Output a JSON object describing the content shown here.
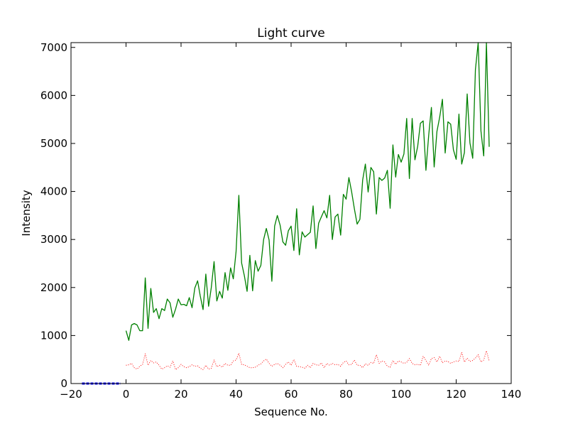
{
  "chart_data": {
    "type": "line",
    "title": "Light curve",
    "xlabel": "Sequence No.",
    "ylabel": "Intensity",
    "xlim": [
      -20,
      140
    ],
    "ylim": [
      0,
      7100
    ],
    "x_ticks": [
      -20,
      0,
      20,
      40,
      60,
      80,
      100,
      120,
      140
    ],
    "y_ticks": [
      0,
      1000,
      2000,
      3000,
      4000,
      5000,
      6000,
      7000
    ],
    "x_tick_labels": [
      "−20",
      "0",
      "20",
      "40",
      "60",
      "80",
      "100",
      "120",
      "140"
    ],
    "y_tick_labels": [
      "0",
      "1000",
      "2000",
      "3000",
      "4000",
      "5000",
      "6000",
      "7000"
    ],
    "grid": false,
    "legend": "none",
    "series": [
      {
        "style": "solid",
        "color": "#008000",
        "x_start": 0,
        "values": [
          1100,
          900,
          1220,
          1250,
          1220,
          1100,
          1100,
          2200,
          1150,
          1980,
          1480,
          1560,
          1350,
          1560,
          1520,
          1760,
          1680,
          1380,
          1550,
          1760,
          1640,
          1650,
          1620,
          1790,
          1580,
          1990,
          2140,
          1820,
          1540,
          2280,
          1610,
          2000,
          2540,
          1720,
          1920,
          1780,
          2310,
          1940,
          2410,
          2180,
          2750,
          3920,
          2510,
          2250,
          1920,
          2670,
          1930,
          2560,
          2340,
          2460,
          3000,
          3230,
          2990,
          2130,
          3280,
          3500,
          3300,
          2950,
          2880,
          3180,
          3280,
          2770,
          3640,
          2680,
          3160,
          3050,
          3100,
          3150,
          3700,
          2810,
          3340,
          3470,
          3600,
          3450,
          3920,
          3000,
          3470,
          3530,
          3090,
          3940,
          3840,
          4290,
          3990,
          3640,
          3320,
          3420,
          4240,
          4570,
          3990,
          4500,
          4410,
          3530,
          4290,
          4230,
          4280,
          4440,
          3650,
          4970,
          4300,
          4770,
          4610,
          4780,
          5520,
          4270,
          5520,
          4660,
          4940,
          5420,
          5470,
          4440,
          5170,
          5750,
          4510,
          5250,
          5550,
          5920,
          4800,
          5450,
          5400,
          4870,
          4670,
          5610,
          4570,
          4810,
          6030,
          5010,
          4690,
          6540,
          7100,
          5260,
          4740,
          7100,
          4930
        ]
      },
      {
        "style": "dotted",
        "color": "#ff0000",
        "x_start": 0,
        "values": [
          380,
          390,
          420,
          330,
          300,
          360,
          400,
          620,
          380,
          480,
          430,
          450,
          380,
          300,
          330,
          370,
          340,
          470,
          290,
          330,
          400,
          350,
          330,
          350,
          390,
          360,
          370,
          320,
          290,
          380,
          300,
          320,
          490,
          350,
          380,
          340,
          420,
          380,
          380,
          470,
          490,
          630,
          400,
          390,
          360,
          330,
          330,
          340,
          380,
          410,
          470,
          510,
          420,
          360,
          400,
          420,
          380,
          330,
          400,
          450,
          380,
          500,
          360,
          350,
          340,
          320,
          380,
          330,
          420,
          390,
          380,
          430,
          330,
          420,
          380,
          420,
          390,
          400,
          360,
          440,
          470,
          390,
          400,
          490,
          380,
          380,
          330,
          410,
          380,
          440,
          420,
          600,
          420,
          470,
          450,
          360,
          340,
          480,
          400,
          470,
          450,
          420,
          440,
          520,
          420,
          390,
          400,
          380,
          570,
          480,
          380,
          520,
          540,
          450,
          570,
          430,
          470,
          460,
          420,
          450,
          470,
          460,
          650,
          450,
          530,
          460,
          480,
          530,
          600,
          450,
          490,
          680,
          470
        ]
      },
      {
        "style": "solid-thick",
        "color": "#0000ff",
        "x": [
          -16,
          -2
        ],
        "values": [
          0,
          0
        ]
      }
    ]
  }
}
